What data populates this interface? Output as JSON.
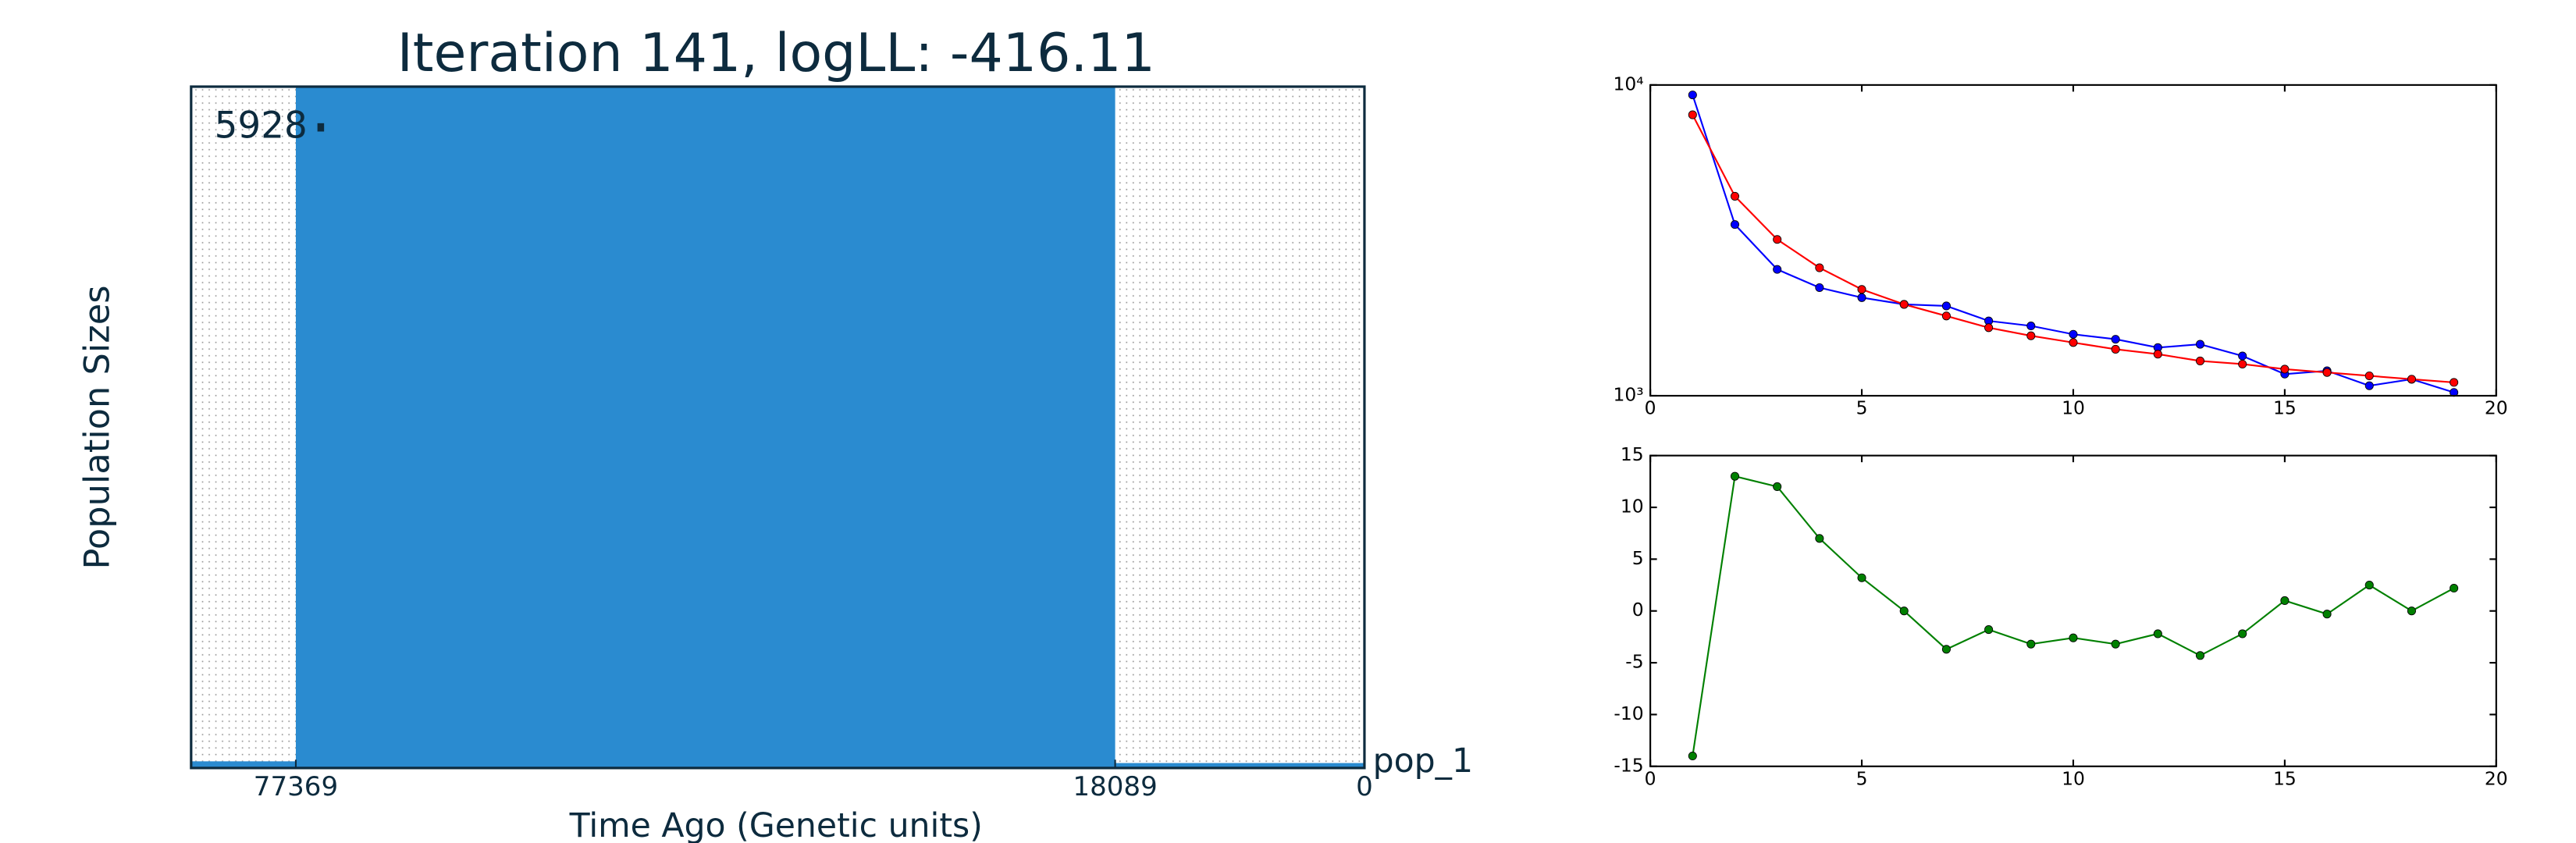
{
  "chart_data": [
    {
      "type": "demography",
      "title": "Iteration 141, logLL:    -416.11",
      "ylabel": "Population Sizes",
      "xlabel": "Time Ago (Genetic units)",
      "pop_label": "pop_1",
      "size_label": 5928,
      "time_ticks": [
        77369,
        18089,
        0
      ],
      "epoch_sizes": [
        58,
        5928,
        43
      ],
      "color": "#2a8bd0"
    },
    {
      "type": "line",
      "log_y": true,
      "xlim": [
        0,
        20
      ],
      "xticks": [
        0,
        5,
        10,
        15,
        20
      ],
      "ylim": [
        1000,
        10000
      ],
      "yticks": [
        {
          "value": 1000,
          "label": "10³"
        },
        {
          "value": 10000,
          "label": "10⁴"
        }
      ],
      "x": [
        1,
        2,
        3,
        4,
        5,
        6,
        7,
        8,
        9,
        10,
        11,
        12,
        13,
        14,
        15,
        16,
        17,
        18,
        19
      ],
      "series": [
        {
          "color": "#0000ff",
          "values": [
            9290,
            3556,
            2550,
            2228,
            2069,
            1968,
            1945,
            1741,
            1678,
            1577,
            1520,
            1429,
            1464,
            1343,
            1174,
            1203,
            1077,
            1130,
            1025
          ]
        },
        {
          "color": "#ff0000",
          "values": [
            8017,
            4385,
            3184,
            2581,
            2199,
            1968,
            1806,
            1656,
            1559,
            1483,
            1411,
            1361,
            1294,
            1264,
            1218,
            1188,
            1159,
            1130,
            1104
          ]
        }
      ]
    },
    {
      "type": "line",
      "log_y": false,
      "xlim": [
        0,
        20
      ],
      "xticks": [
        0,
        5,
        10,
        15,
        20
      ],
      "ylim": [
        -15,
        15
      ],
      "yticks": [
        -15,
        -10,
        -5,
        0,
        5,
        10,
        15
      ],
      "x": [
        1,
        2,
        3,
        4,
        5,
        6,
        7,
        8,
        9,
        10,
        11,
        12,
        13,
        14,
        15,
        16,
        17,
        18,
        19
      ],
      "series": [
        {
          "color": "#008000",
          "values": [
            -14,
            13,
            12,
            7,
            3.2,
            0,
            -3.7,
            -1.8,
            -3.2,
            -2.6,
            -3.2,
            -2.2,
            -4.3,
            -2.2,
            1,
            -0.3,
            2.5,
            0,
            2.2
          ]
        }
      ]
    }
  ]
}
